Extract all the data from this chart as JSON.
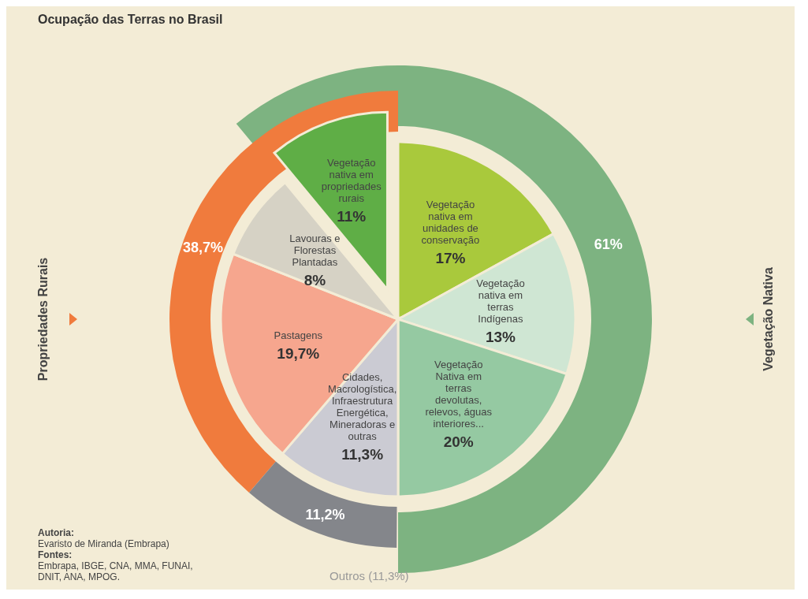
{
  "chart_data": [
    {
      "type": "pie",
      "title": "Ocupação das Terras no Brasil",
      "categories": [
        "Vegetação nativa em unidades de conservação",
        "Vegetação nativa em terras Indígenas",
        "Vegetação Nativa em terras devolutas, relevos, águas interiores...",
        "Cidades, Macrologística, Infraestrutura Energética, Mineradoras e outras",
        "Pastagens",
        "Lavouras e Florestas Plantadas",
        "Vegetação nativa em propriedades rurais"
      ],
      "values": [
        17,
        13,
        20,
        11.3,
        19.7,
        8,
        11
      ],
      "colors": [
        "#a9c93c",
        "#cfe6d3",
        "#95c9a2",
        "#cbcbd3",
        "#f6a68e",
        "#d6d2c5",
        "#5fae46"
      ],
      "value_labels": [
        "17%",
        "13%",
        "20%",
        "11,3%",
        "19,7%",
        "8%",
        "11%"
      ],
      "annotations": [
        "Autoria: Evaristo de Miranda (Embrapa)",
        "Fontes: Embrapa, IBGE, CNA, MMA, FUNAI, DNIT, ANA, MPOG."
      ]
    },
    {
      "type": "other",
      "categories": [
        "Vegetação Nativa",
        "Propriedades Rurais",
        "Outros (11,3%)"
      ],
      "values": [
        61,
        38.7,
        11.2
      ],
      "colors": [
        "#7db381",
        "#f07b3d",
        "#84868b"
      ],
      "value_labels": [
        "61%",
        "38,7%",
        "11,2%"
      ]
    }
  ]
}
